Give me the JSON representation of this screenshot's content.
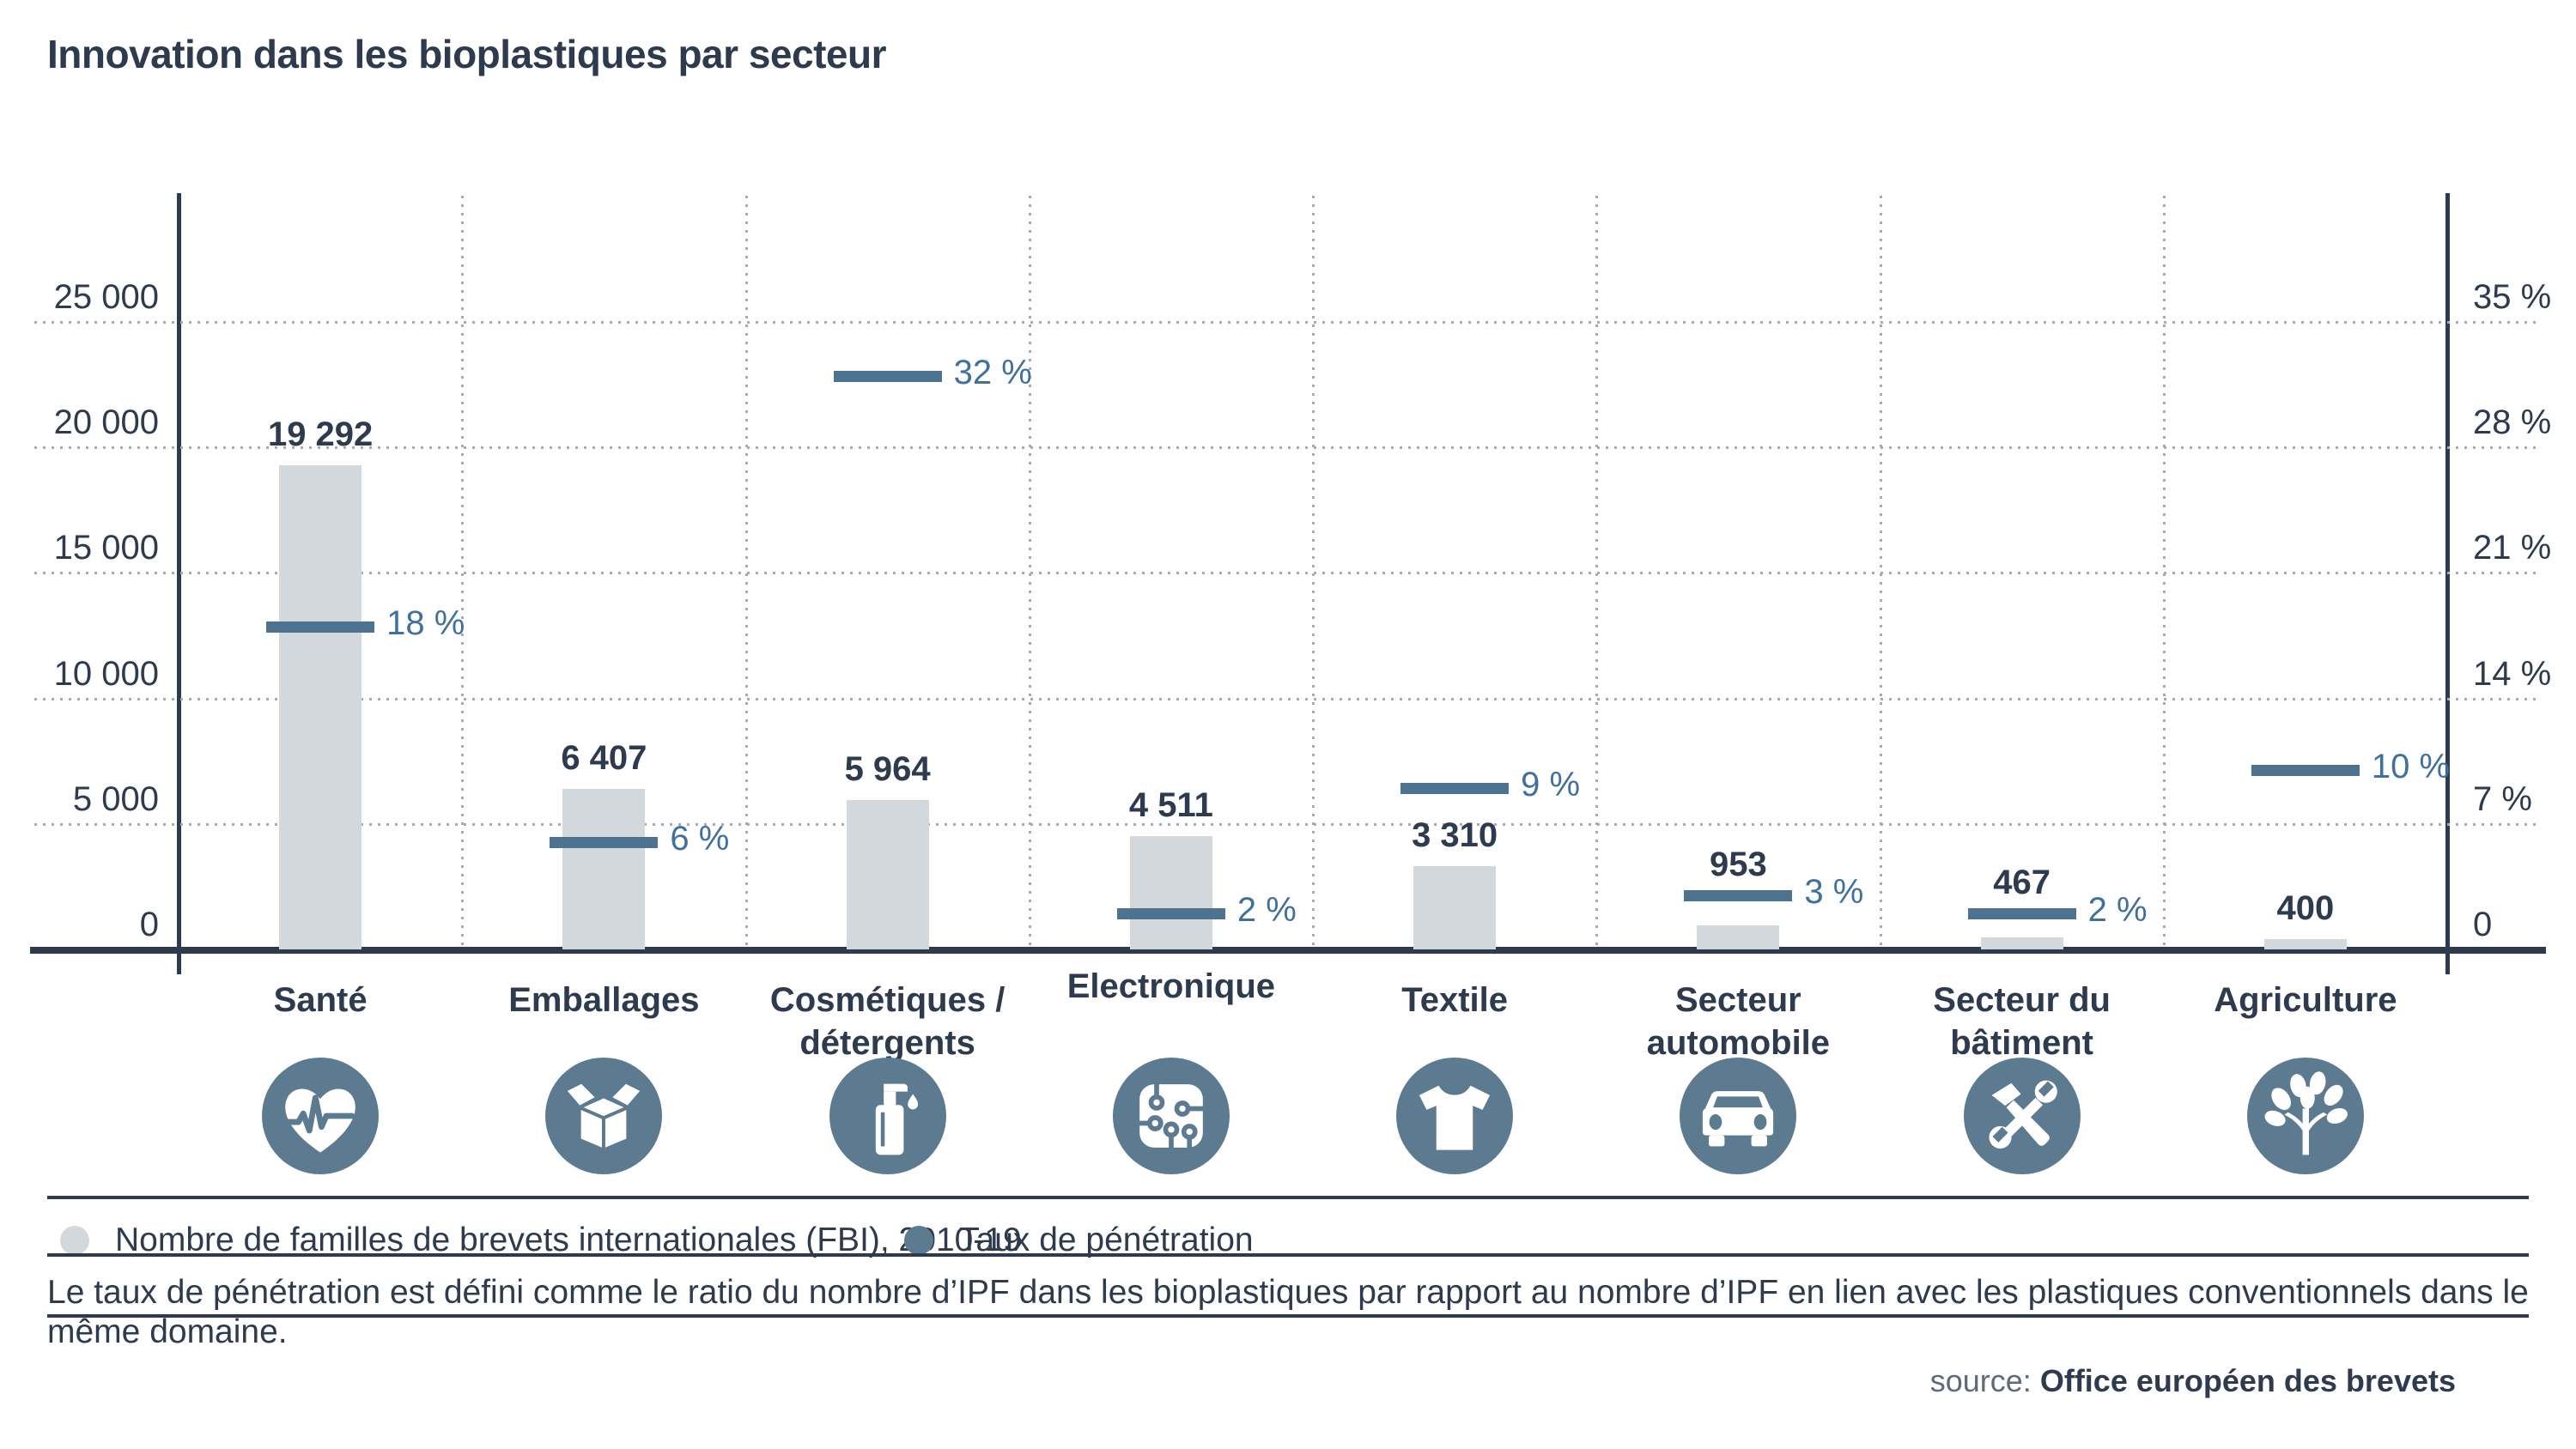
{
  "title": "Innovation dans les bioplastiques par secteur",
  "chart_data": {
    "type": "bar",
    "title": "Innovation dans les bioplastiques par secteur",
    "categories": [
      "Santé",
      "Emballages",
      "Cosmétiques /\ndétergents",
      "Electronique",
      "Textile",
      "Secteur\nautomobile",
      "Secteur du\nbâtiment",
      "Agriculture"
    ],
    "series": [
      {
        "name": "Nombre de familles de brevets internationales (FBI), 2010-19",
        "type": "bar",
        "values": [
          19292,
          6407,
          5964,
          4511,
          3310,
          953,
          467,
          400
        ],
        "labels": [
          "19 292",
          "6 407",
          "5 964",
          "4 511",
          "3 310",
          "953",
          "467",
          "400"
        ]
      },
      {
        "name": "Taux de pénétration",
        "type": "marker",
        "values": [
          18,
          6,
          32,
          2,
          9,
          3,
          2,
          10
        ],
        "labels": [
          "18 %",
          "6 %",
          "32 %",
          "2 %",
          "9 %",
          "3 %",
          "2 %",
          "10 %"
        ]
      }
    ],
    "left_axis": {
      "ticks": [
        "25 000",
        "20 000",
        "15 000",
        "10 000",
        "5 000",
        "0"
      ],
      "max": 25000,
      "min": 0
    },
    "right_axis": {
      "ticks": [
        "35 %",
        "28 %",
        "21 %",
        "14 %",
        "7 %",
        "0"
      ],
      "max": 35,
      "min": 0
    },
    "grid": "dotted",
    "legend_position": "bottom",
    "icons": [
      "heart-pulse-icon",
      "open-box-icon",
      "pump-bottle-icon",
      "circuit-board-icon",
      "tshirt-icon",
      "car-icon",
      "hammer-wrench-icon",
      "tree-icon"
    ],
    "colors": {
      "bar": "#d3d8dd",
      "marker": "#4e7390",
      "percent_text": "#40719c",
      "dark_text": "#2e3a4d",
      "icon_circle": "#5d7b90",
      "grid": "#a7abb0"
    }
  },
  "legend": {
    "items": [
      {
        "label": "Nombre de familles de brevets internationales (FBI), 2010-19",
        "color": "#d3d8dd"
      },
      {
        "label": "Taux de pénétration",
        "color": "#5d7b90"
      }
    ]
  },
  "footnote": "Le taux de pénétration est défini comme le ratio du nombre d’IPF dans les bioplastiques par rapport au nombre d’IPF en lien avec les plastiques conventionnels dans le même domaine.",
  "source": {
    "prefix": "source:",
    "name": "Office européen des brevets"
  }
}
